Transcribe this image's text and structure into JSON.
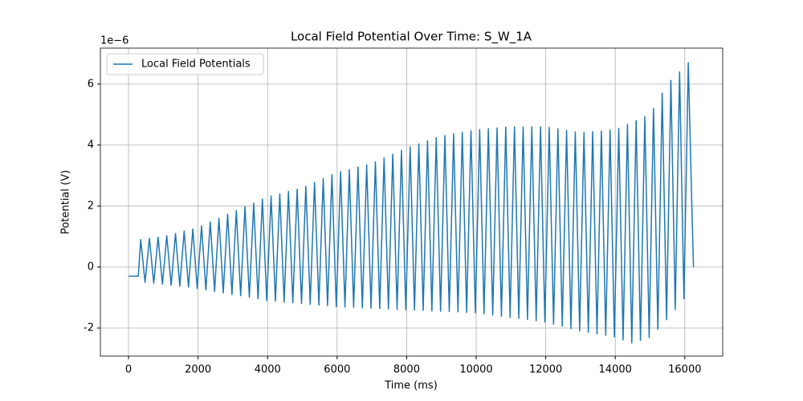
{
  "chart_data": {
    "type": "line",
    "title": "Local Field Potential Over Time: S_W_1A",
    "xlabel": "Time (ms)",
    "ylabel": "Potential (V)",
    "y_offset_label": "1e−6",
    "grid": true,
    "legend": "upper left",
    "xlim": [
      -810,
      17090
    ],
    "ylim": [
      -2.92,
      7.18
    ],
    "xticks": [
      0,
      2000,
      4000,
      6000,
      8000,
      10000,
      12000,
      14000,
      16000
    ],
    "yticks": [
      -2,
      0,
      2,
      4,
      6
    ],
    "x": [
      0,
      280,
      350,
      475,
      600,
      725,
      850,
      975,
      1100,
      1225,
      1350,
      1475,
      1600,
      1725,
      1850,
      1975,
      2100,
      2225,
      2350,
      2475,
      2600,
      2725,
      2850,
      2975,
      3100,
      3225,
      3350,
      3475,
      3600,
      3725,
      3850,
      3975,
      4100,
      4225,
      4350,
      4475,
      4600,
      4725,
      4850,
      4975,
      5100,
      5225,
      5350,
      5475,
      5600,
      5725,
      5850,
      5975,
      6100,
      6225,
      6350,
      6475,
      6600,
      6725,
      6850,
      6975,
      7100,
      7225,
      7350,
      7475,
      7600,
      7725,
      7850,
      7975,
      8100,
      8225,
      8350,
      8475,
      8600,
      8725,
      8850,
      8975,
      9100,
      9225,
      9350,
      9475,
      9600,
      9725,
      9850,
      9975,
      10100,
      10225,
      10350,
      10475,
      10600,
      10725,
      10850,
      10975,
      11100,
      11225,
      11350,
      11475,
      11600,
      11725,
      11850,
      11975,
      12100,
      12225,
      12350,
      12475,
      12600,
      12725,
      12850,
      12975,
      13100,
      13225,
      13350,
      13475,
      13600,
      13725,
      13850,
      13975,
      14100,
      14225,
      14350,
      14475,
      14600,
      14725,
      14850,
      14975,
      15100,
      15225,
      15350,
      15475,
      15600,
      15725,
      15850,
      15975,
      16100,
      16200,
      16250
    ],
    "series": [
      {
        "name": "Local Field Potentials",
        "color": "#1f77b4",
        "values": [
          -0.3,
          -0.3,
          0.9,
          -0.5,
          0.94,
          -0.53,
          0.98,
          -0.56,
          1.03,
          -0.6,
          1.1,
          -0.63,
          1.18,
          -0.66,
          1.25,
          -0.7,
          1.35,
          -0.75,
          1.48,
          -0.8,
          1.6,
          -0.85,
          1.73,
          -0.9,
          1.85,
          -0.94,
          1.98,
          -0.99,
          2.1,
          -1.04,
          2.23,
          -1.1,
          2.33,
          -1.12,
          2.4,
          -1.15,
          2.48,
          -1.17,
          2.55,
          -1.2,
          2.65,
          -1.22,
          2.78,
          -1.25,
          2.9,
          -1.27,
          3.03,
          -1.3,
          3.13,
          -1.31,
          3.2,
          -1.32,
          3.28,
          -1.34,
          3.35,
          -1.35,
          3.45,
          -1.36,
          3.58,
          -1.37,
          3.7,
          -1.39,
          3.83,
          -1.4,
          3.94,
          -1.41,
          4.04,
          -1.42,
          4.14,
          -1.44,
          4.24,
          -1.45,
          4.31,
          -1.46,
          4.37,
          -1.47,
          4.42,
          -1.49,
          4.47,
          -1.5,
          4.51,
          -1.53,
          4.54,
          -1.57,
          4.56,
          -1.61,
          4.59,
          -1.65,
          4.6,
          -1.68,
          4.6,
          -1.72,
          4.6,
          -1.76,
          4.6,
          -1.8,
          4.58,
          -1.87,
          4.53,
          -1.94,
          4.48,
          -2.02,
          4.43,
          -2.09,
          4.41,
          -2.14,
          4.44,
          -2.19,
          4.46,
          -2.24,
          4.49,
          -2.29,
          4.55,
          -2.39,
          4.68,
          -2.49,
          4.8,
          -2.4,
          4.93,
          -2.31,
          5.2,
          -2.04,
          5.7,
          -1.73,
          6.12,
          -1.39,
          6.4,
          -1.04,
          6.7,
          2.1,
          0.0
        ]
      }
    ]
  }
}
